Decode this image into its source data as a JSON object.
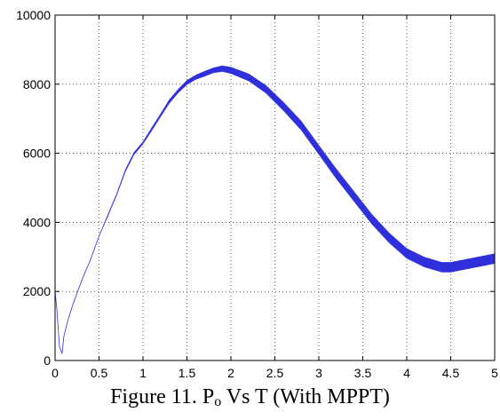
{
  "caption": {
    "before": "Figure 11. P",
    "subscript": "o",
    "after": " Vs T (With MPPT)"
  },
  "chart_data": {
    "type": "line",
    "title": "",
    "xlabel": "",
    "ylabel": "",
    "xlim": [
      0,
      5
    ],
    "ylim": [
      0,
      10000
    ],
    "xticks": [
      0,
      0.5,
      1,
      1.5,
      2,
      2.5,
      3,
      3.5,
      4,
      4.5,
      5
    ],
    "xtick_labels": [
      "0",
      "0.5",
      "1",
      "1.5",
      "2",
      "2.5",
      "3",
      "3.5",
      "4",
      "4.5",
      "5"
    ],
    "yticks": [
      0,
      2000,
      4000,
      6000,
      8000,
      10000
    ],
    "ytick_labels": [
      "0",
      "2000",
      "4000",
      "6000",
      "8000",
      "10000"
    ],
    "grid": true,
    "line_color": "#2f2fdc",
    "series": [
      {
        "x": [
          0,
          0.02,
          0.05,
          0.08,
          0.1,
          0.15,
          0.2,
          0.3,
          0.4,
          0.5,
          0.6,
          0.7,
          0.8,
          0.9,
          1.0,
          1.1,
          1.2,
          1.3,
          1.4,
          1.5,
          1.6,
          1.7,
          1.8,
          1.9,
          2.0,
          2.2,
          2.4,
          2.6,
          2.8,
          3.0,
          3.2,
          3.4,
          3.6,
          3.8,
          4.0,
          4.2,
          4.4,
          4.5,
          4.6,
          4.7,
          4.8,
          4.9,
          5.0
        ],
        "y": [
          2000,
          1500,
          400,
          200,
          700,
          1200,
          1600,
          2300,
          2900,
          3600,
          4200,
          4800,
          5500,
          6000,
          6300,
          6700,
          7100,
          7500,
          7800,
          8050,
          8200,
          8300,
          8400,
          8450,
          8400,
          8200,
          7850,
          7350,
          6800,
          6100,
          5400,
          4750,
          4100,
          3550,
          3100,
          2850,
          2700,
          2700,
          2750,
          2800,
          2850,
          2900,
          2950
        ],
        "noise_amplitude": [
          0,
          0,
          0,
          0,
          0,
          0,
          0,
          0,
          0,
          0,
          20,
          20,
          30,
          30,
          30,
          40,
          40,
          50,
          50,
          60,
          60,
          70,
          70,
          80,
          90,
          100,
          110,
          120,
          130,
          130,
          140,
          140,
          140,
          140,
          140,
          140,
          140,
          140,
          140,
          140,
          140,
          140,
          140
        ]
      }
    ]
  }
}
